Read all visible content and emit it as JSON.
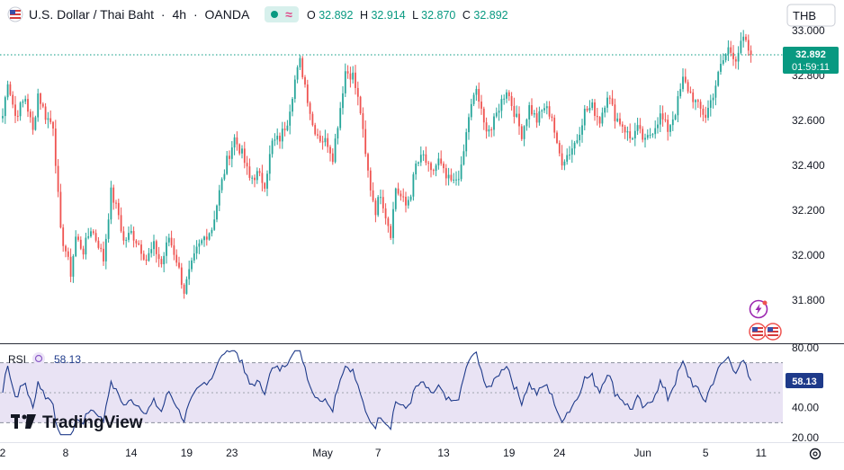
{
  "symbol": {
    "name": "U.S. Dollar / Thai Baht",
    "separator1": "·",
    "interval": "4h",
    "separator2": "·",
    "exchange": "OANDA",
    "flag_icon": "us-thai-flag-icon",
    "open_label": "O",
    "open": "32.892",
    "high_label": "H",
    "high": "32.914",
    "low_label": "L",
    "low": "32.870",
    "close_label": "C",
    "close": "32.892"
  },
  "currency_button": "THB",
  "price_badge": {
    "price": "32.892",
    "countdown": "01:59:11"
  },
  "rsi": {
    "label": "RSI",
    "value": "58.13",
    "badge": "58.13"
  },
  "watermark": {
    "text": "TradingView"
  },
  "colors": {
    "up": "#26a69a",
    "down": "#ef5350",
    "rsi_line": "#1e3a8a",
    "rsi_band": "#e9e3f4",
    "badge": "#089981"
  },
  "chart_data": [
    {
      "type": "candlestick",
      "series_name": "USD/THB",
      "interval": "4h",
      "y_ticks": [
        "31.800",
        "32.000",
        "32.200",
        "32.400",
        "32.600",
        "32.800",
        "33.000"
      ],
      "ylim": [
        31.6,
        33.08
      ],
      "x_ticks": [
        {
          "label": "2",
          "index": 0
        },
        {
          "label": "8",
          "index": 25
        },
        {
          "label": "14",
          "index": 51
        },
        {
          "label": "19",
          "index": 73
        },
        {
          "label": "23",
          "index": 91
        },
        {
          "label": "May",
          "index": 127
        },
        {
          "label": "7",
          "index": 149
        },
        {
          "label": "13",
          "index": 175
        },
        {
          "label": "19",
          "index": 201
        },
        {
          "label": "24",
          "index": 221
        },
        {
          "label": "Jun",
          "index": 254
        },
        {
          "label": "5",
          "index": 279
        },
        {
          "label": "11",
          "index": 301
        }
      ],
      "waypoints": [
        [
          0,
          32.62
        ],
        [
          2,
          32.78
        ],
        [
          5,
          32.62
        ],
        [
          9,
          32.7
        ],
        [
          12,
          32.55
        ],
        [
          14,
          32.72
        ],
        [
          17,
          32.62
        ],
        [
          20,
          32.58
        ],
        [
          23,
          32.1
        ],
        [
          25,
          32.02
        ],
        [
          27,
          31.92
        ],
        [
          29,
          32.08
        ],
        [
          32,
          32.02
        ],
        [
          35,
          32.12
        ],
        [
          38,
          32.05
        ],
        [
          40,
          31.98
        ],
        [
          43,
          32.28
        ],
        [
          46,
          32.18
        ],
        [
          48,
          32.06
        ],
        [
          51,
          32.1
        ],
        [
          54,
          32.05
        ],
        [
          57,
          31.98
        ],
        [
          60,
          32.04
        ],
        [
          63,
          31.96
        ],
        [
          66,
          32.08
        ],
        [
          69,
          31.98
        ],
        [
          72,
          31.84
        ],
        [
          74,
          31.92
        ],
        [
          77,
          32.02
        ],
        [
          80,
          32.08
        ],
        [
          83,
          32.12
        ],
        [
          86,
          32.28
        ],
        [
          89,
          32.42
        ],
        [
          92,
          32.52
        ],
        [
          95,
          32.45
        ],
        [
          98,
          32.34
        ],
        [
          101,
          32.36
        ],
        [
          104,
          32.32
        ],
        [
          107,
          32.5
        ],
        [
          110,
          32.52
        ],
        [
          113,
          32.6
        ],
        [
          116,
          32.78
        ],
        [
          118,
          32.86
        ],
        [
          120,
          32.76
        ],
        [
          123,
          32.58
        ],
        [
          126,
          32.52
        ],
        [
          129,
          32.5
        ],
        [
          131,
          32.44
        ],
        [
          134,
          32.66
        ],
        [
          136,
          32.82
        ],
        [
          139,
          32.8
        ],
        [
          142,
          32.64
        ],
        [
          144,
          32.44
        ],
        [
          146,
          32.3
        ],
        [
          148,
          32.2
        ],
        [
          150,
          32.28
        ],
        [
          152,
          32.18
        ],
        [
          154,
          32.1
        ],
        [
          156,
          32.3
        ],
        [
          158,
          32.26
        ],
        [
          160,
          32.22
        ],
        [
          162,
          32.28
        ],
        [
          164,
          32.4
        ],
        [
          167,
          32.44
        ],
        [
          170,
          32.36
        ],
        [
          173,
          32.42
        ],
        [
          176,
          32.34
        ],
        [
          179,
          32.32
        ],
        [
          182,
          32.38
        ],
        [
          185,
          32.62
        ],
        [
          188,
          32.74
        ],
        [
          191,
          32.58
        ],
        [
          194,
          32.56
        ],
        [
          197,
          32.66
        ],
        [
          200,
          32.74
        ],
        [
          203,
          32.64
        ],
        [
          206,
          32.54
        ],
        [
          209,
          32.66
        ],
        [
          212,
          32.6
        ],
        [
          215,
          32.66
        ],
        [
          218,
          32.62
        ],
        [
          220,
          32.48
        ],
        [
          222,
          32.42
        ],
        [
          225,
          32.46
        ],
        [
          228,
          32.52
        ],
        [
          231,
          32.64
        ],
        [
          234,
          32.66
        ],
        [
          237,
          32.6
        ],
        [
          240,
          32.72
        ],
        [
          243,
          32.62
        ],
        [
          246,
          32.58
        ],
        [
          249,
          32.52
        ],
        [
          252,
          32.56
        ],
        [
          255,
          32.5
        ],
        [
          258,
          32.56
        ],
        [
          261,
          32.62
        ],
        [
          264,
          32.56
        ],
        [
          267,
          32.64
        ],
        [
          270,
          32.78
        ],
        [
          273,
          32.72
        ],
        [
          276,
          32.66
        ],
        [
          279,
          32.62
        ],
        [
          282,
          32.72
        ],
        [
          285,
          32.84
        ],
        [
          288,
          32.92
        ],
        [
          291,
          32.88
        ],
        [
          294,
          32.96
        ],
        [
          297,
          32.89
        ]
      ],
      "last_close": 32.892
    },
    {
      "type": "line",
      "series_name": "RSI",
      "y_ticks": [
        "20.00",
        "40.00",
        "60.00",
        "80.00"
      ],
      "ylim": [
        20,
        80
      ],
      "bands": [
        30,
        70
      ],
      "midline": 50,
      "last_value": 58.13
    }
  ]
}
